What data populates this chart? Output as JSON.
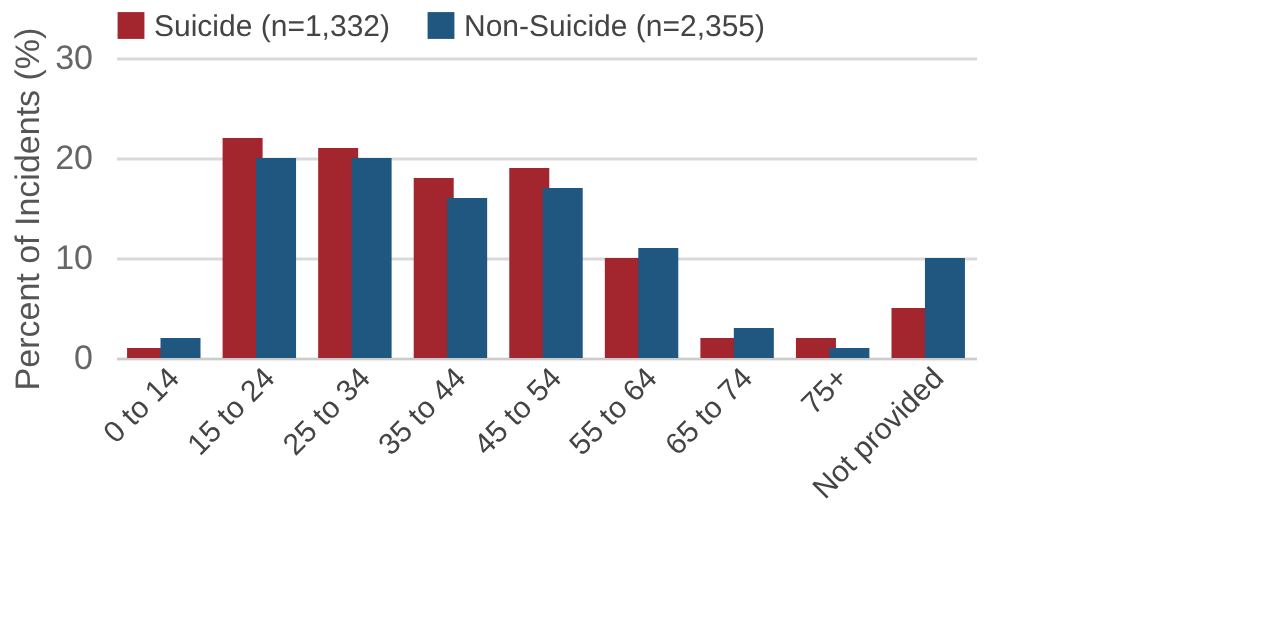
{
  "chart_data": {
    "type": "bar",
    "ylabel": "Percent of Incidents (%)",
    "categories": [
      "0 to 14",
      "15 to 24",
      "25 to 34",
      "35 to 44",
      "45 to 54",
      "55 to 64",
      "65 to 74",
      "75+",
      "Not provided"
    ],
    "series": [
      {
        "name": "Suicide (n=1,332)",
        "color": "#a3262f",
        "values": [
          1,
          22,
          21,
          18,
          19,
          10,
          2,
          2,
          5
        ]
      },
      {
        "name": "Non-Suicide (n=2,355)",
        "color": "#1f5780",
        "values": [
          2,
          20,
          20,
          16,
          17,
          11,
          3,
          1,
          10
        ]
      }
    ],
    "ylim": [
      0,
      30
    ],
    "yticks": [
      0,
      10,
      20,
      30
    ],
    "grid": "y",
    "legend": "top"
  }
}
